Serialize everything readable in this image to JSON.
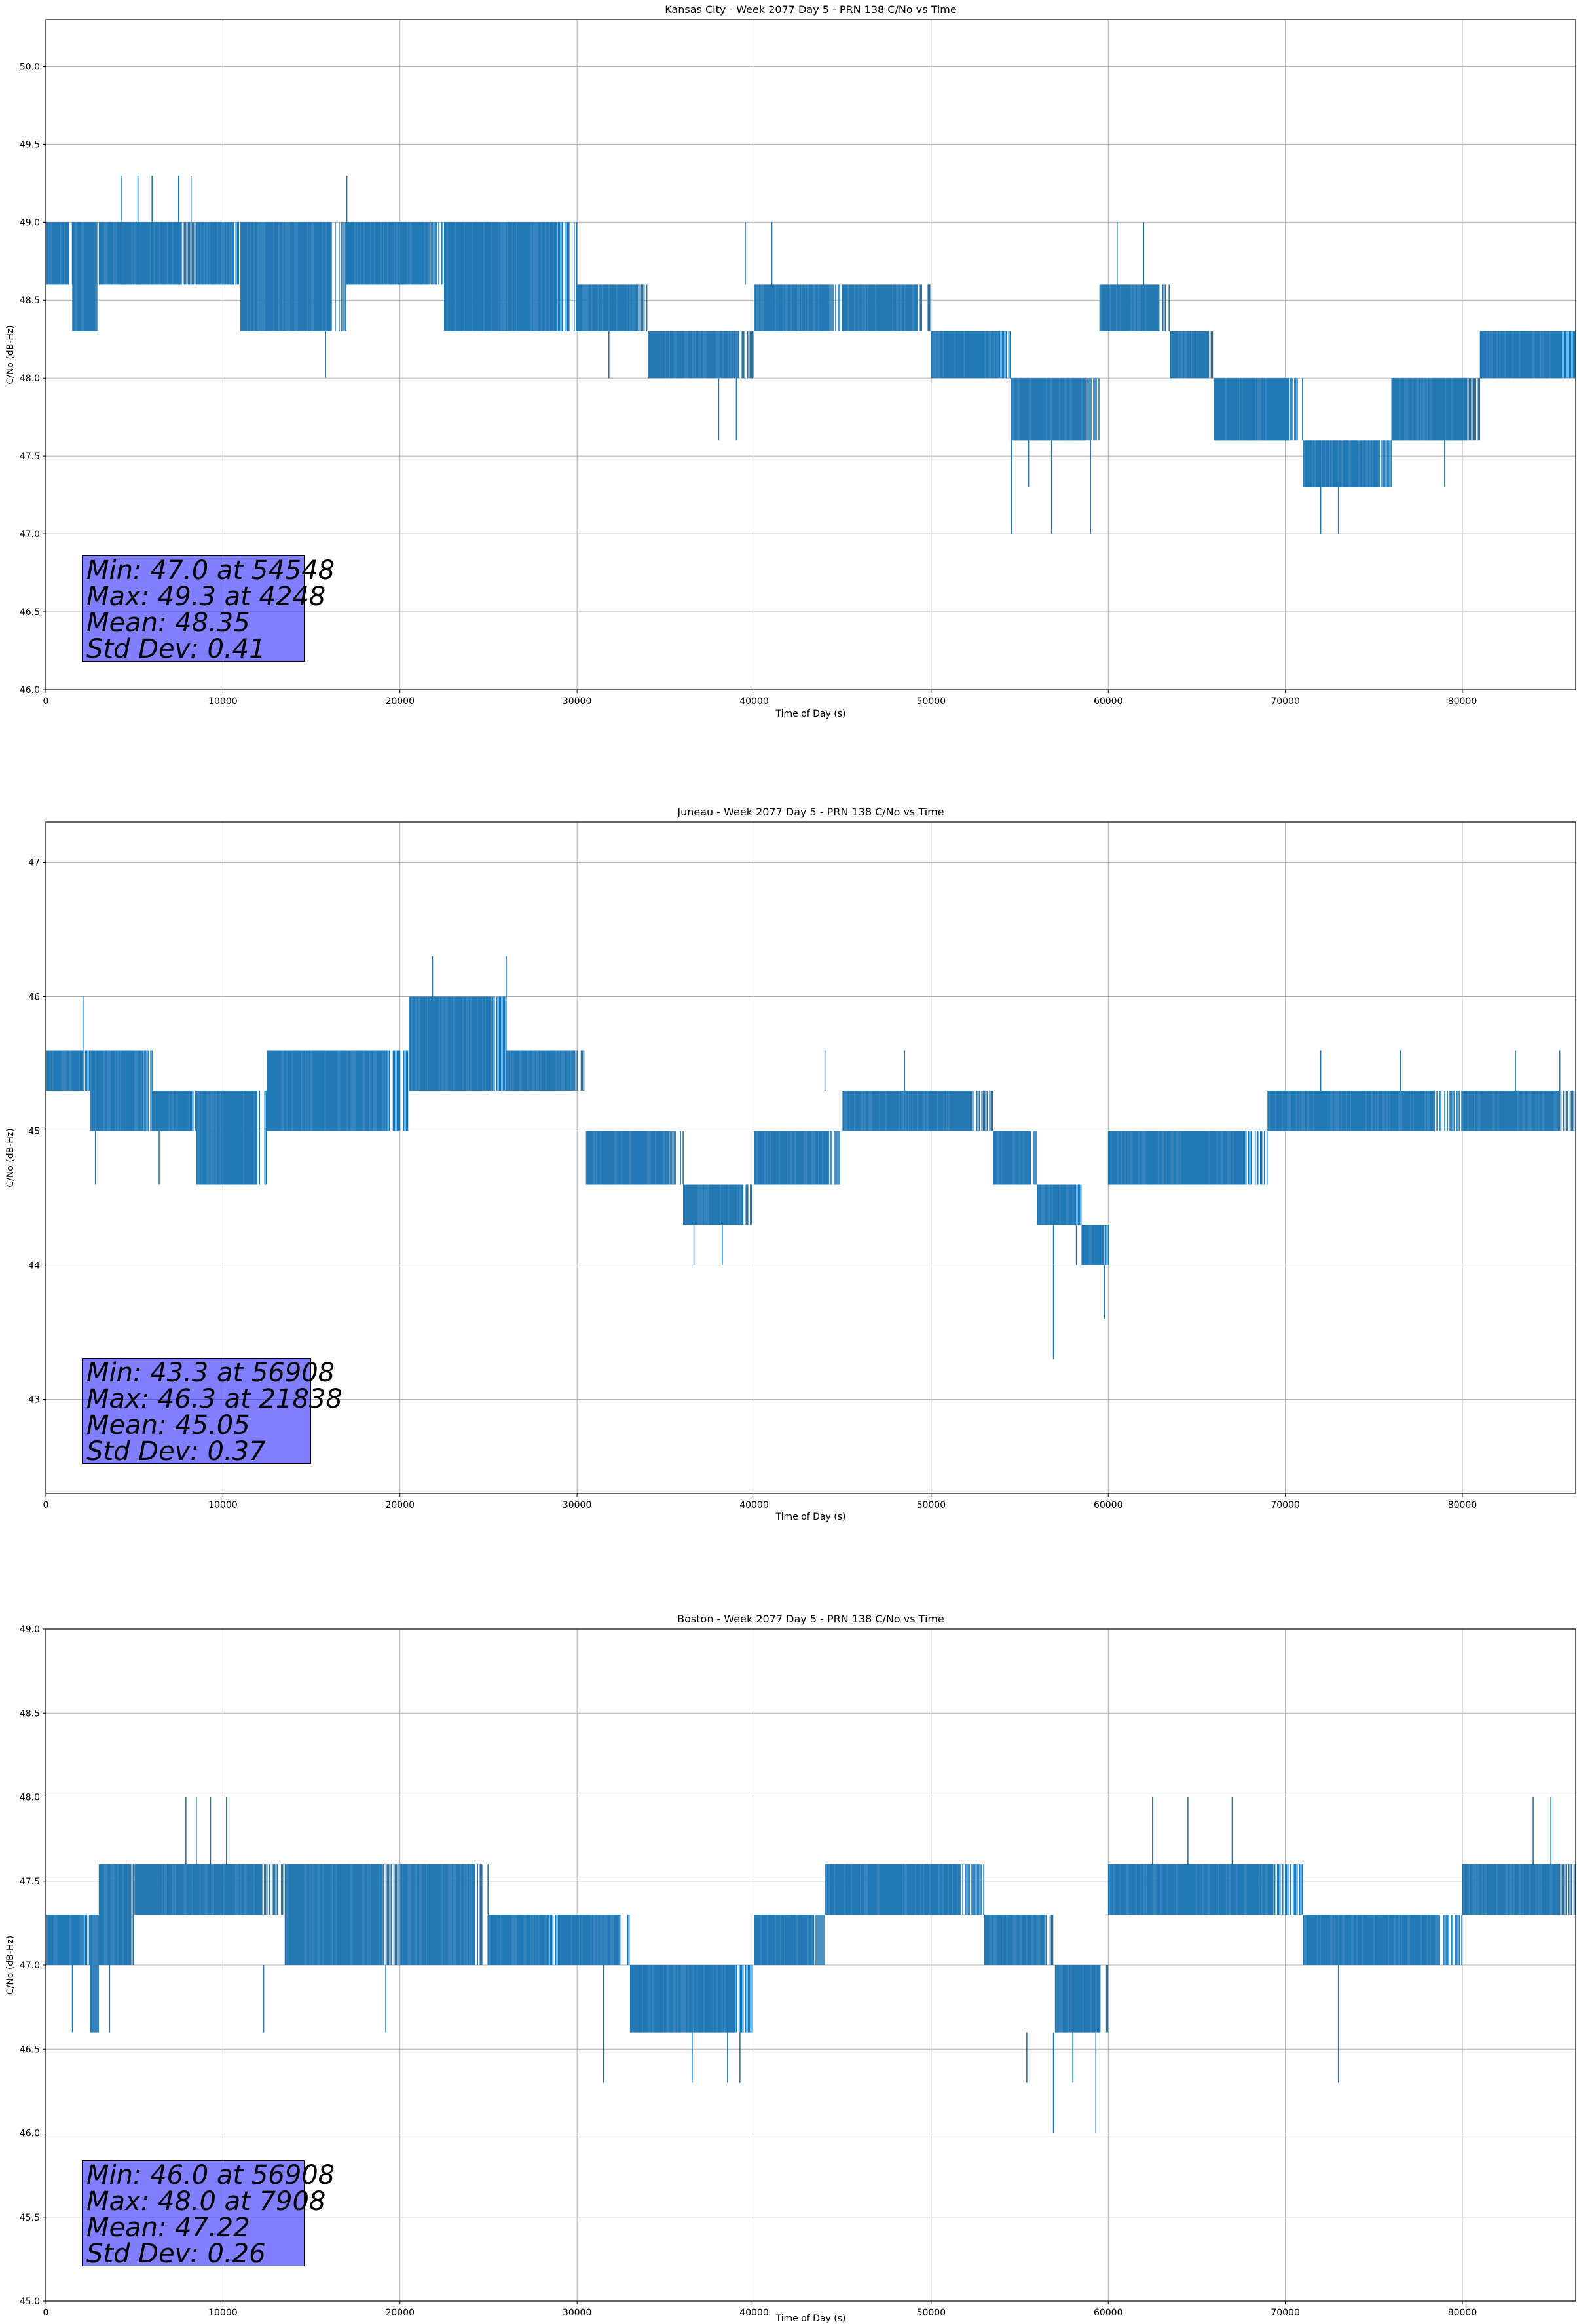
{
  "chart_data": [
    {
      "type": "line",
      "title": "Kansas City - Week 2077 Day 5 - PRN 138 C/No vs Time",
      "xlabel": "Time of Day (s)",
      "ylabel": "C/No (dB-Hz)",
      "xlim": [
        0,
        86400
      ],
      "ylim": [
        46.0,
        50.3
      ],
      "xticks": [
        0,
        10000,
        20000,
        30000,
        40000,
        50000,
        60000,
        70000,
        80000
      ],
      "yticks": [
        46.0,
        46.5,
        47.0,
        47.5,
        48.0,
        48.5,
        49.0,
        49.5,
        50.0
      ],
      "tick_decimals": 1,
      "grid": true,
      "series_color": "#1f77b4",
      "segments": [
        {
          "x0": 0,
          "x1": 1500,
          "lo": 48.6,
          "hi": 49.0
        },
        {
          "x0": 1500,
          "x1": 3000,
          "lo": 48.3,
          "hi": 49.0
        },
        {
          "x0": 3000,
          "x1": 8500,
          "lo": 48.6,
          "hi": 49.0
        },
        {
          "x0": 8500,
          "x1": 11000,
          "lo": 48.6,
          "hi": 49.0
        },
        {
          "x0": 11000,
          "x1": 17000,
          "lo": 48.3,
          "hi": 49.0
        },
        {
          "x0": 17000,
          "x1": 22500,
          "lo": 48.6,
          "hi": 49.0
        },
        {
          "x0": 22500,
          "x1": 30000,
          "lo": 48.3,
          "hi": 49.0
        },
        {
          "x0": 30000,
          "x1": 34000,
          "lo": 48.3,
          "hi": 48.6
        },
        {
          "x0": 34000,
          "x1": 40000,
          "lo": 48.0,
          "hi": 48.3
        },
        {
          "x0": 40000,
          "x1": 45000,
          "lo": 48.3,
          "hi": 48.6
        },
        {
          "x0": 45000,
          "x1": 50000,
          "lo": 48.3,
          "hi": 48.6
        },
        {
          "x0": 50000,
          "x1": 54500,
          "lo": 48.0,
          "hi": 48.3
        },
        {
          "x0": 54500,
          "x1": 59500,
          "lo": 47.6,
          "hi": 48.0
        },
        {
          "x0": 59500,
          "x1": 63500,
          "lo": 48.3,
          "hi": 48.6
        },
        {
          "x0": 63500,
          "x1": 66000,
          "lo": 48.0,
          "hi": 48.3
        },
        {
          "x0": 66000,
          "x1": 71000,
          "lo": 47.6,
          "hi": 48.0
        },
        {
          "x0": 71000,
          "x1": 76000,
          "lo": 47.3,
          "hi": 47.6
        },
        {
          "x0": 76000,
          "x1": 81000,
          "lo": 47.6,
          "hi": 48.0
        },
        {
          "x0": 81000,
          "x1": 86400,
          "lo": 48.0,
          "hi": 48.3
        }
      ],
      "spikes": [
        {
          "x": 4248,
          "y0": 48.6,
          "y1": 49.3
        },
        {
          "x": 5200,
          "y0": 48.6,
          "y1": 49.3
        },
        {
          "x": 6000,
          "y0": 48.6,
          "y1": 49.3
        },
        {
          "x": 7500,
          "y0": 48.6,
          "y1": 49.3
        },
        {
          "x": 8200,
          "y0": 48.6,
          "y1": 49.3
        },
        {
          "x": 17000,
          "y0": 48.6,
          "y1": 49.3
        },
        {
          "x": 15800,
          "y0": 48.3,
          "y1": 48.0
        },
        {
          "x": 31800,
          "y0": 48.3,
          "y1": 48.0
        },
        {
          "x": 38000,
          "y0": 48.0,
          "y1": 47.6
        },
        {
          "x": 39000,
          "y0": 48.0,
          "y1": 47.6
        },
        {
          "x": 39500,
          "y0": 48.6,
          "y1": 49.0
        },
        {
          "x": 41000,
          "y0": 48.6,
          "y1": 49.0
        },
        {
          "x": 54548,
          "y0": 47.6,
          "y1": 47.0
        },
        {
          "x": 55500,
          "y0": 47.6,
          "y1": 47.3
        },
        {
          "x": 56800,
          "y0": 47.6,
          "y1": 47.0
        },
        {
          "x": 59000,
          "y0": 47.6,
          "y1": 47.0
        },
        {
          "x": 60500,
          "y0": 48.6,
          "y1": 49.0
        },
        {
          "x": 62000,
          "y0": 48.6,
          "y1": 49.0
        },
        {
          "x": 72000,
          "y0": 47.3,
          "y1": 47.0
        },
        {
          "x": 73000,
          "y0": 47.3,
          "y1": 47.0
        },
        {
          "x": 79000,
          "y0": 47.6,
          "y1": 47.3
        }
      ],
      "stats": [
        "Min: 47.0 at 54548",
        "Max: 49.3 at 4248",
        "Mean: 48.35",
        "Std Dev: 0.41"
      ]
    },
    {
      "type": "line",
      "title": "Juneau - Week 2077 Day 5 - PRN 138 C/No vs Time",
      "xlabel": "Time of Day (s)",
      "ylabel": "C/No (dB-Hz)",
      "xlim": [
        0,
        86400
      ],
      "ylim": [
        42.3,
        47.3
      ],
      "xticks": [
        0,
        10000,
        20000,
        30000,
        40000,
        50000,
        60000,
        70000,
        80000
      ],
      "yticks": [
        43,
        44,
        45,
        46,
        47
      ],
      "tick_decimals": 0,
      "grid": true,
      "series_color": "#1f77b4",
      "segments": [
        {
          "x0": 0,
          "x1": 2500,
          "lo": 45.3,
          "hi": 45.6
        },
        {
          "x0": 2500,
          "x1": 6000,
          "lo": 45.0,
          "hi": 45.6
        },
        {
          "x0": 6000,
          "x1": 8500,
          "lo": 45.0,
          "hi": 45.3
        },
        {
          "x0": 8500,
          "x1": 12500,
          "lo": 44.6,
          "hi": 45.3
        },
        {
          "x0": 12500,
          "x1": 20500,
          "lo": 45.0,
          "hi": 45.6
        },
        {
          "x0": 20500,
          "x1": 26000,
          "lo": 45.3,
          "hi": 46.0
        },
        {
          "x0": 26000,
          "x1": 30500,
          "lo": 45.3,
          "hi": 45.6
        },
        {
          "x0": 30500,
          "x1": 36000,
          "lo": 44.6,
          "hi": 45.0
        },
        {
          "x0": 36000,
          "x1": 40000,
          "lo": 44.3,
          "hi": 44.6
        },
        {
          "x0": 40000,
          "x1": 45000,
          "lo": 44.6,
          "hi": 45.0
        },
        {
          "x0": 45000,
          "x1": 53500,
          "lo": 45.0,
          "hi": 45.3
        },
        {
          "x0": 53500,
          "x1": 56000,
          "lo": 44.6,
          "hi": 45.0
        },
        {
          "x0": 56000,
          "x1": 58500,
          "lo": 44.3,
          "hi": 44.6
        },
        {
          "x0": 58500,
          "x1": 60000,
          "lo": 44.0,
          "hi": 44.3
        },
        {
          "x0": 60000,
          "x1": 69000,
          "lo": 44.6,
          "hi": 45.0
        },
        {
          "x0": 69000,
          "x1": 80000,
          "lo": 45.0,
          "hi": 45.3
        },
        {
          "x0": 80000,
          "x1": 86400,
          "lo": 45.0,
          "hi": 45.3
        }
      ],
      "spikes": [
        {
          "x": 2100,
          "y0": 45.6,
          "y1": 46.0
        },
        {
          "x": 2800,
          "y0": 45.0,
          "y1": 44.6
        },
        {
          "x": 6400,
          "y0": 45.0,
          "y1": 44.6
        },
        {
          "x": 21838,
          "y0": 46.0,
          "y1": 46.3
        },
        {
          "x": 26000,
          "y0": 46.0,
          "y1": 46.3
        },
        {
          "x": 36600,
          "y0": 44.3,
          "y1": 44.0
        },
        {
          "x": 38200,
          "y0": 44.3,
          "y1": 44.0
        },
        {
          "x": 44000,
          "y0": 45.3,
          "y1": 45.6
        },
        {
          "x": 48500,
          "y0": 45.3,
          "y1": 45.6
        },
        {
          "x": 56908,
          "y0": 44.3,
          "y1": 43.3
        },
        {
          "x": 59800,
          "y0": 44.0,
          "y1": 43.6
        },
        {
          "x": 58200,
          "y0": 44.3,
          "y1": 44.0
        },
        {
          "x": 72000,
          "y0": 45.3,
          "y1": 45.6
        },
        {
          "x": 76500,
          "y0": 45.3,
          "y1": 45.6
        },
        {
          "x": 83000,
          "y0": 45.3,
          "y1": 45.6
        },
        {
          "x": 85500,
          "y0": 45.3,
          "y1": 45.6
        }
      ],
      "stats": [
        "Min: 43.3 at 56908",
        "Max: 46.3 at 21838",
        "Mean: 45.05",
        "Std Dev: 0.37"
      ]
    },
    {
      "type": "line",
      "title": "Boston - Week 2077 Day 5 - PRN 138 C/No vs Time",
      "xlabel": "Time of Day (s)",
      "ylabel": "C/No (dB-Hz)",
      "xlim": [
        0,
        86400
      ],
      "ylim": [
        45.0,
        49.0
      ],
      "xticks": [
        0,
        10000,
        20000,
        30000,
        40000,
        50000,
        60000,
        70000,
        80000
      ],
      "yticks": [
        45.0,
        45.5,
        46.0,
        46.5,
        47.0,
        47.5,
        48.0,
        48.5,
        49.0
      ],
      "tick_decimals": 1,
      "grid": true,
      "series_color": "#1f77b4",
      "segments": [
        {
          "x0": 0,
          "x1": 2500,
          "lo": 47.0,
          "hi": 47.3
        },
        {
          "x0": 2500,
          "x1": 3000,
          "lo": 46.6,
          "hi": 47.3
        },
        {
          "x0": 3000,
          "x1": 5000,
          "lo": 47.0,
          "hi": 47.6
        },
        {
          "x0": 5000,
          "x1": 13500,
          "lo": 47.3,
          "hi": 47.6
        },
        {
          "x0": 13500,
          "x1": 20000,
          "lo": 47.0,
          "hi": 47.6
        },
        {
          "x0": 20000,
          "x1": 25000,
          "lo": 47.0,
          "hi": 47.6
        },
        {
          "x0": 25000,
          "x1": 29000,
          "lo": 47.0,
          "hi": 47.3
        },
        {
          "x0": 29000,
          "x1": 33000,
          "lo": 47.0,
          "hi": 47.3
        },
        {
          "x0": 33000,
          "x1": 40000,
          "lo": 46.6,
          "hi": 47.0
        },
        {
          "x0": 40000,
          "x1": 44000,
          "lo": 47.0,
          "hi": 47.3
        },
        {
          "x0": 44000,
          "x1": 53000,
          "lo": 47.3,
          "hi": 47.6
        },
        {
          "x0": 53000,
          "x1": 57000,
          "lo": 47.0,
          "hi": 47.3
        },
        {
          "x0": 57000,
          "x1": 60000,
          "lo": 46.6,
          "hi": 47.0
        },
        {
          "x0": 60000,
          "x1": 71000,
          "lo": 47.3,
          "hi": 47.6
        },
        {
          "x0": 71000,
          "x1": 80000,
          "lo": 47.0,
          "hi": 47.3
        },
        {
          "x0": 80000,
          "x1": 86400,
          "lo": 47.3,
          "hi": 47.6
        }
      ],
      "spikes": [
        {
          "x": 1500,
          "y0": 47.0,
          "y1": 46.6
        },
        {
          "x": 3600,
          "y0": 47.0,
          "y1": 46.6
        },
        {
          "x": 7908,
          "y0": 47.6,
          "y1": 48.0
        },
        {
          "x": 8500,
          "y0": 47.6,
          "y1": 48.0
        },
        {
          "x": 9300,
          "y0": 47.6,
          "y1": 48.0
        },
        {
          "x": 10200,
          "y0": 47.6,
          "y1": 48.0
        },
        {
          "x": 12300,
          "y0": 47.0,
          "y1": 46.6
        },
        {
          "x": 19200,
          "y0": 47.0,
          "y1": 46.6
        },
        {
          "x": 31500,
          "y0": 47.0,
          "y1": 46.3
        },
        {
          "x": 36500,
          "y0": 46.6,
          "y1": 46.3
        },
        {
          "x": 38500,
          "y0": 46.6,
          "y1": 46.3
        },
        {
          "x": 39200,
          "y0": 46.6,
          "y1": 46.3
        },
        {
          "x": 55400,
          "y0": 46.6,
          "y1": 46.3
        },
        {
          "x": 56908,
          "y0": 46.6,
          "y1": 46.0
        },
        {
          "x": 58000,
          "y0": 46.6,
          "y1": 46.3
        },
        {
          "x": 59300,
          "y0": 46.6,
          "y1": 46.0
        },
        {
          "x": 62500,
          "y0": 47.6,
          "y1": 48.0
        },
        {
          "x": 64500,
          "y0": 47.6,
          "y1": 48.0
        },
        {
          "x": 67000,
          "y0": 47.6,
          "y1": 48.0
        },
        {
          "x": 73000,
          "y0": 47.0,
          "y1": 46.3
        },
        {
          "x": 84000,
          "y0": 47.6,
          "y1": 48.0
        },
        {
          "x": 85000,
          "y0": 47.6,
          "y1": 48.0
        }
      ],
      "stats": [
        "Min: 46.0 at 56908",
        "Max: 48.0 at 7908",
        "Mean: 47.22",
        "Std Dev: 0.26"
      ]
    }
  ]
}
